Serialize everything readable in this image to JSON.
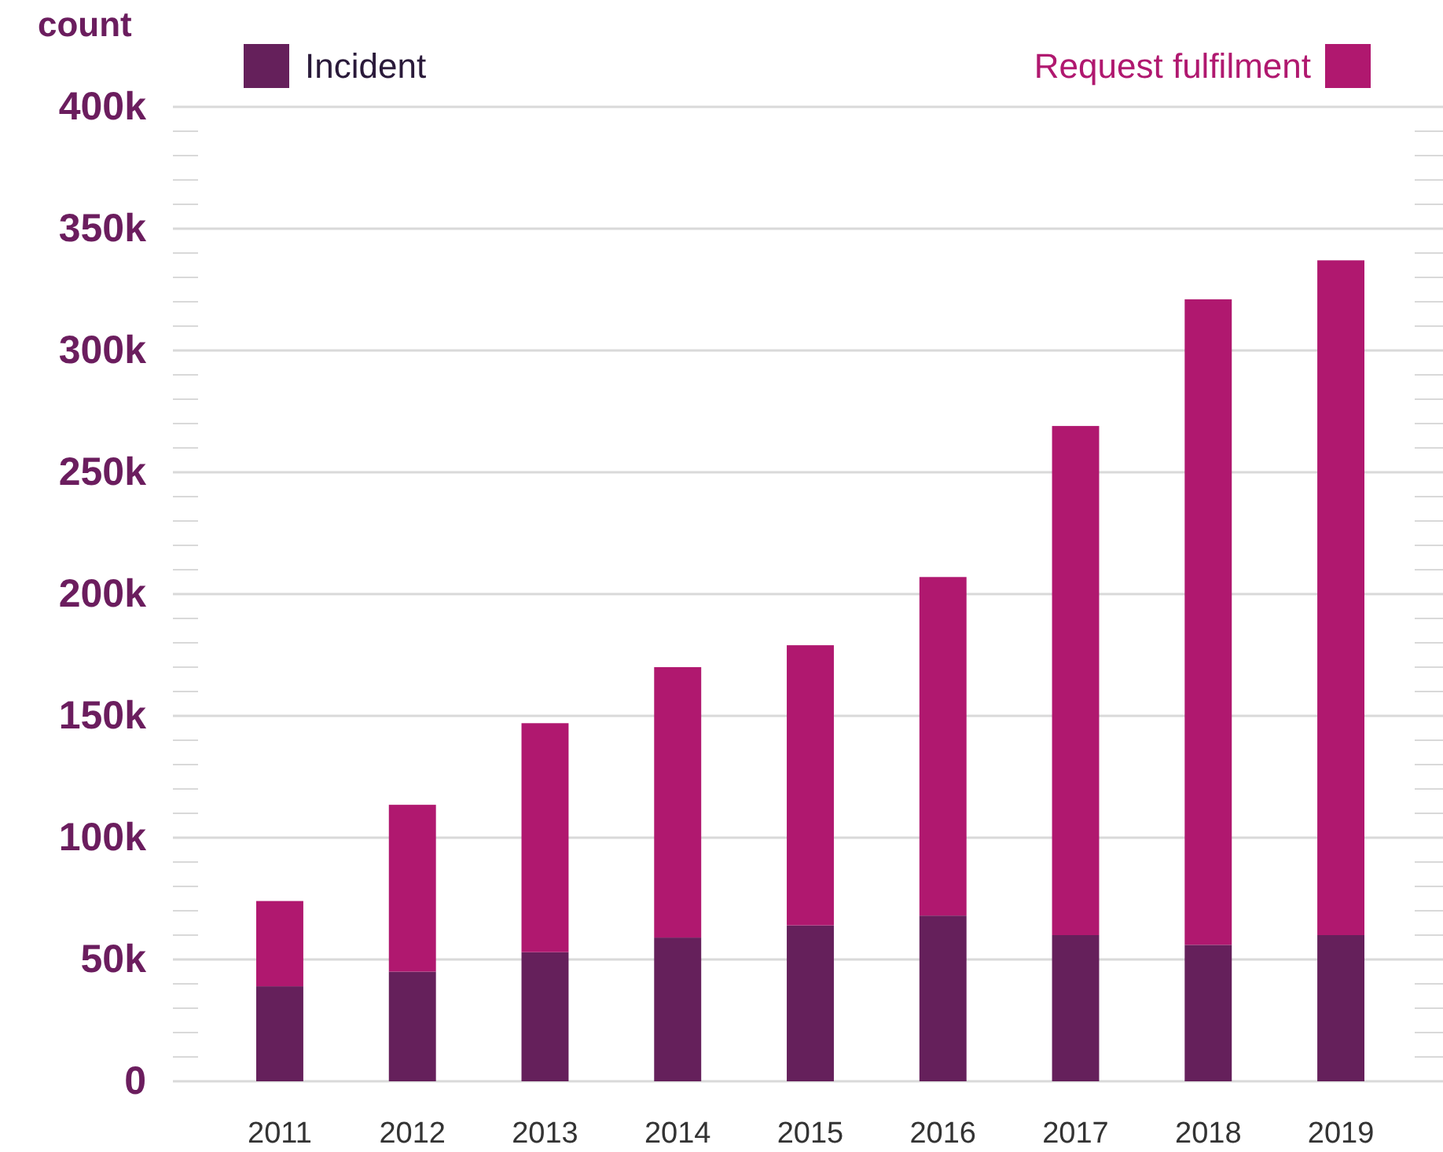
{
  "chart_data": {
    "type": "bar",
    "stacked": true,
    "ylabel": "count",
    "categories": [
      "2011",
      "2012",
      "2013",
      "2014",
      "2015",
      "2016",
      "2017",
      "2018",
      "2019"
    ],
    "series": [
      {
        "name": "Incident",
        "color": "#65205b",
        "values": [
          39000,
          45000,
          53000,
          59000,
          64000,
          68000,
          60000,
          56000,
          60000
        ]
      },
      {
        "name": "Request fulfilment",
        "color": "#b0186f",
        "values": [
          35000,
          68500,
          94000,
          111000,
          115000,
          139000,
          209000,
          265000,
          277000
        ]
      }
    ],
    "ylim": [
      0,
      400000
    ],
    "yticks": [
      0,
      {
        "value": 10000,
        "label": null
      },
      {
        "value": 20000,
        "label": null
      },
      {
        "value": 30000,
        "label": null
      },
      {
        "value": 40000,
        "label": null
      },
      {
        "value": 50000,
        "label": "50k"
      },
      {
        "value": 60000,
        "label": null
      },
      {
        "value": 70000,
        "label": null
      },
      {
        "value": 80000,
        "label": null
      },
      {
        "value": 90000,
        "label": null
      },
      {
        "value": 100000,
        "label": "100k"
      },
      {
        "value": 110000,
        "label": null
      },
      {
        "value": 120000,
        "label": null
      },
      {
        "value": 130000,
        "label": null
      },
      {
        "value": 140000,
        "label": null
      },
      {
        "value": 150000,
        "label": "150k"
      },
      {
        "value": 160000,
        "label": null
      },
      {
        "value": 170000,
        "label": null
      },
      {
        "value": 180000,
        "label": null
      },
      {
        "value": 190000,
        "label": null
      },
      {
        "value": 200000,
        "label": "200k"
      },
      {
        "value": 210000,
        "label": null
      },
      {
        "value": 220000,
        "label": null
      },
      {
        "value": 230000,
        "label": null
      },
      {
        "value": 240000,
        "label": null
      },
      {
        "value": 250000,
        "label": "250k"
      },
      {
        "value": 260000,
        "label": null
      },
      {
        "value": 270000,
        "label": null
      },
      {
        "value": 280000,
        "label": null
      },
      {
        "value": 290000,
        "label": null
      },
      {
        "value": 300000,
        "label": "300k"
      },
      {
        "value": 310000,
        "label": null
      },
      {
        "value": 320000,
        "label": null
      },
      {
        "value": 330000,
        "label": null
      },
      {
        "value": 340000,
        "label": null
      },
      {
        "value": 350000,
        "label": "350k"
      },
      {
        "value": 360000,
        "label": null
      },
      {
        "value": 370000,
        "label": null
      },
      {
        "value": 380000,
        "label": null
      },
      {
        "value": 390000,
        "label": null
      },
      {
        "value": 400000,
        "label": "400k"
      }
    ],
    "grid": "y",
    "legend": "top"
  }
}
